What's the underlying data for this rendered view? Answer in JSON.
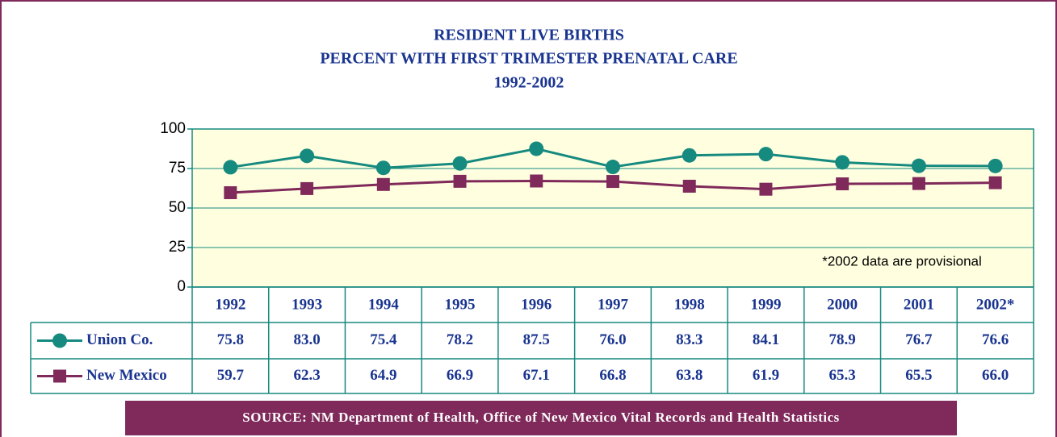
{
  "chart_data": {
    "type": "line",
    "title": [
      "RESIDENT LIVE BIRTHS",
      "PERCENT WITH FIRST TRIMESTER PRENATAL CARE",
      "1992-2002"
    ],
    "categories": [
      "1992",
      "1993",
      "1994",
      "1995",
      "1996",
      "1997",
      "1998",
      "1999",
      "2000",
      "2001",
      "2002*"
    ],
    "series": [
      {
        "name": "Union Co.",
        "color": "#178a80",
        "values": [
          75.8,
          83.0,
          75.4,
          78.2,
          87.5,
          76.0,
          83.3,
          84.1,
          78.9,
          76.7,
          76.6
        ],
        "value_labels": [
          "75.8",
          "83.0",
          "75.4",
          "78.2",
          "87.5",
          "76.0",
          "83.3",
          "84.1",
          "78.9",
          "76.7",
          "76.6"
        ]
      },
      {
        "name": "New Mexico",
        "color": "#7f2a5a",
        "values": [
          59.7,
          62.3,
          64.9,
          66.9,
          67.1,
          66.8,
          63.8,
          61.9,
          65.3,
          65.5,
          66.0
        ],
        "value_labels": [
          "59.7",
          "62.3",
          "64.9",
          "66.9",
          "67.1",
          "66.8",
          "63.8",
          "61.9",
          "65.3",
          "65.5",
          "66.0"
        ]
      }
    ],
    "ylim": [
      0,
      100
    ],
    "yticks": [
      0,
      25,
      50,
      75,
      100
    ],
    "grid": true,
    "annotation": "*2002 data are provisional",
    "source": "SOURCE: NM Department of Health, Office of New Mexico Vital Records and Health Statistics"
  }
}
